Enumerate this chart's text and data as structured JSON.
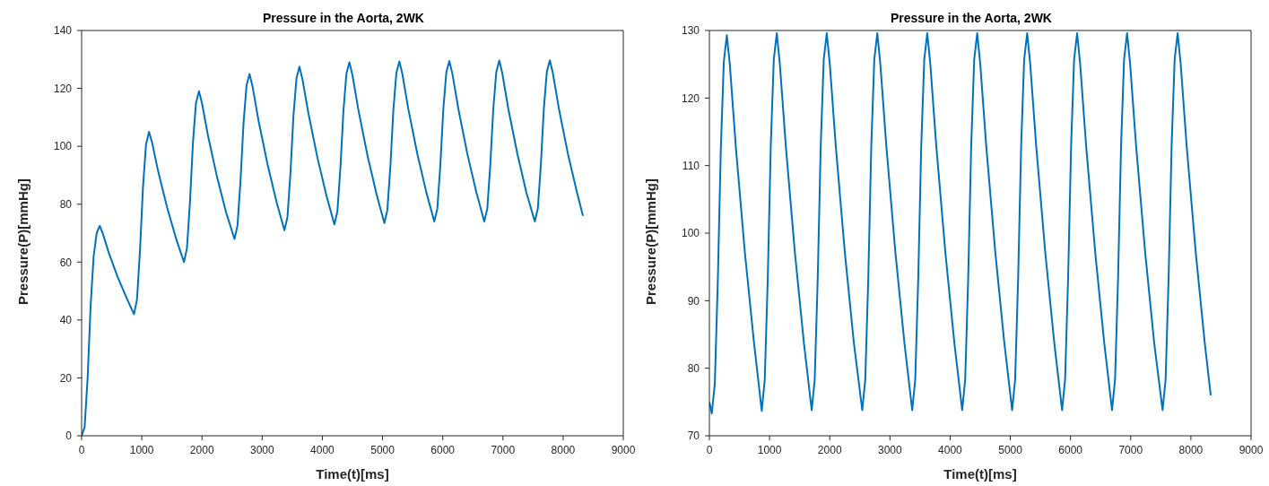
{
  "chart_data": [
    {
      "type": "line",
      "title": "Pressure in the Aorta, 2WK",
      "xlabel": "Time(t)[ms]",
      "ylabel": "Pressure(P)[mmHg]",
      "xlim": [
        0,
        9000
      ],
      "xticks": [
        0,
        1000,
        2000,
        3000,
        4000,
        5000,
        6000,
        7000,
        8000,
        9000
      ],
      "ylim": [
        0,
        140
      ],
      "yticks": [
        0,
        20,
        40,
        60,
        80,
        100,
        120,
        140
      ],
      "grid": false,
      "legend": false,
      "x": [
        0,
        50,
        100,
        150,
        200,
        250,
        300,
        350,
        450,
        600,
        750,
        870,
        920,
        970,
        1020,
        1070,
        1120,
        1170,
        1270,
        1420,
        1570,
        1700,
        1750,
        1800,
        1850,
        1900,
        1950,
        2000,
        2100,
        2250,
        2400,
        2540,
        2590,
        2640,
        2690,
        2740,
        2790,
        2840,
        2940,
        3090,
        3240,
        3370,
        3420,
        3470,
        3520,
        3570,
        3620,
        3670,
        3770,
        3920,
        4070,
        4200,
        4250,
        4300,
        4350,
        4400,
        4450,
        4500,
        4600,
        4750,
        4900,
        5030,
        5080,
        5130,
        5180,
        5230,
        5280,
        5330,
        5430,
        5580,
        5730,
        5860,
        5910,
        5960,
        6010,
        6060,
        6110,
        6160,
        6260,
        6410,
        6560,
        6690,
        6740,
        6790,
        6840,
        6890,
        6940,
        6990,
        7090,
        7240,
        7390,
        7530,
        7580,
        7630,
        7680,
        7730,
        7780,
        7830,
        7930,
        8080,
        8230,
        8330
      ],
      "series": [
        {
          "color": "#0072bd",
          "values": [
            0,
            3,
            20,
            45,
            62,
            70,
            72.5,
            70,
            63.3,
            54.8,
            47.5,
            42,
            47,
            64,
            86,
            100.6,
            105,
            101.4,
            91.5,
            78.9,
            68.1,
            60,
            64.7,
            80.7,
            101.3,
            114.9,
            119,
            114.9,
            103.7,
            89.4,
            77.2,
            68,
            72.6,
            88,
            107.9,
            121,
            125,
            120.7,
            108.8,
            93.7,
            80.7,
            71,
            75.5,
            90.8,
            110.6,
            123.5,
            127.5,
            123.1,
            111.2,
            95.9,
            82.8,
            73,
            77.5,
            92.6,
            112.2,
            125.1,
            129,
            124.6,
            112.4,
            96.8,
            83.5,
            73.5,
            78,
            93,
            112.6,
            125.4,
            129.3,
            124.9,
            112.7,
            97.2,
            83.9,
            74,
            78.4,
            93.4,
            112.9,
            125.6,
            129.5,
            125.1,
            112.9,
            97.3,
            84,
            74,
            78.4,
            93.5,
            112.9,
            125.7,
            129.6,
            125.2,
            112.9,
            97.4,
            84,
            74,
            78.5,
            93.5,
            113,
            125.8,
            129.7,
            125.3,
            113,
            97.4,
            84.1,
            76
          ]
        }
      ]
    },
    {
      "type": "line",
      "title": "Pressure in the Aorta, 2WK",
      "xlabel": "Time(t)[ms]",
      "ylabel": "Pressure(P)[mmHg]",
      "xlim": [
        0,
        9000
      ],
      "xticks": [
        0,
        1000,
        2000,
        3000,
        4000,
        5000,
        6000,
        7000,
        8000,
        9000
      ],
      "ylim": [
        70,
        130
      ],
      "yticks": [
        70,
        80,
        90,
        100,
        110,
        120,
        130
      ],
      "grid": false,
      "legend": false,
      "x": [
        0,
        40,
        90,
        140,
        190,
        240,
        290,
        340,
        440,
        590,
        740,
        870,
        920,
        970,
        1020,
        1070,
        1120,
        1170,
        1270,
        1420,
        1570,
        1700,
        1750,
        1800,
        1850,
        1900,
        1950,
        2000,
        2100,
        2250,
        2400,
        2540,
        2590,
        2640,
        2690,
        2740,
        2790,
        2840,
        2940,
        3090,
        3240,
        3370,
        3420,
        3470,
        3520,
        3570,
        3620,
        3670,
        3770,
        3920,
        4070,
        4200,
        4250,
        4300,
        4350,
        4400,
        4450,
        4500,
        4600,
        4750,
        4900,
        5030,
        5080,
        5130,
        5180,
        5230,
        5280,
        5330,
        5430,
        5580,
        5730,
        5860,
        5910,
        5960,
        6010,
        6060,
        6110,
        6160,
        6260,
        6410,
        6560,
        6690,
        6740,
        6790,
        6840,
        6890,
        6940,
        6990,
        7090,
        7240,
        7390,
        7530,
        7580,
        7630,
        7680,
        7730,
        7780,
        7830,
        7930,
        8080,
        8230,
        8330
      ],
      "series": [
        {
          "color": "#0072bd",
          "values": [
            75,
            73.3,
            77.7,
            92.9,
            112.5,
            125.4,
            129.3,
            124.9,
            112.7,
            97.1,
            83.9,
            73.7,
            78.3,
            93.3,
            112.9,
            125.7,
            129.6,
            125.1,
            112.9,
            97.2,
            83.8,
            73.8,
            78.3,
            93.3,
            112.9,
            125.7,
            129.6,
            125.1,
            112.9,
            97.2,
            83.8,
            73.8,
            78.3,
            93.3,
            112.9,
            125.7,
            129.6,
            125.1,
            112.9,
            97.2,
            83.8,
            73.8,
            78.3,
            93.3,
            112.9,
            125.7,
            129.6,
            125.1,
            112.9,
            97.2,
            83.8,
            73.8,
            78.3,
            93.3,
            112.9,
            125.7,
            129.6,
            125.1,
            112.9,
            97.2,
            83.8,
            73.8,
            78.3,
            93.3,
            112.9,
            125.7,
            129.6,
            125.1,
            112.9,
            97.2,
            83.8,
            73.8,
            78.3,
            93.3,
            112.9,
            125.7,
            129.6,
            125.1,
            112.9,
            97.2,
            83.8,
            73.8,
            78.3,
            93.3,
            112.9,
            125.7,
            129.6,
            125.1,
            112.9,
            97.2,
            83.8,
            73.8,
            78.3,
            93.3,
            112.9,
            125.7,
            129.6,
            125.1,
            112.9,
            97.2,
            83.8,
            76
          ]
        }
      ]
    }
  ]
}
